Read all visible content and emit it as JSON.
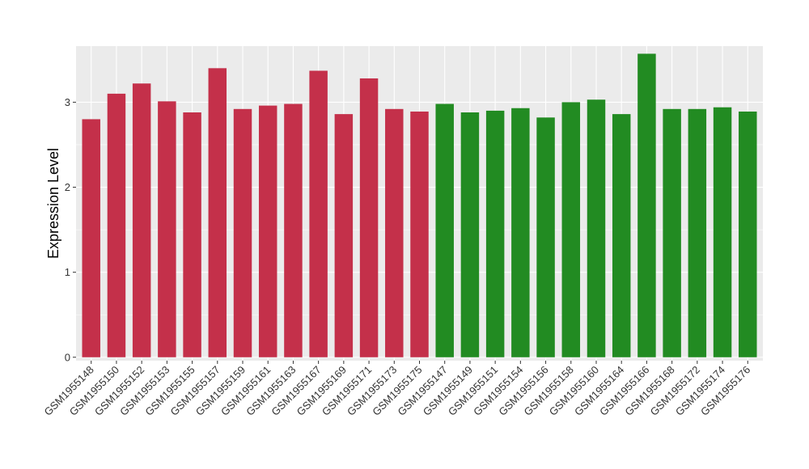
{
  "chart_data": {
    "type": "bar",
    "title": "",
    "xlabel": "",
    "ylabel": "Expression Level",
    "ylim": [
      -0.04,
      3.66
    ],
    "yticks": [
      0,
      1,
      2,
      3
    ],
    "grid": true,
    "legend": "none",
    "categories": [
      "GSM1955148",
      "GSM1955150",
      "GSM1955152",
      "GSM1955153",
      "GSM1955155",
      "GSM1955157",
      "GSM1955159",
      "GSM1955161",
      "GSM1955163",
      "GSM1955167",
      "GSM1955169",
      "GSM1955171",
      "GSM1955173",
      "GSM1955175",
      "GSM1955147",
      "GSM1955149",
      "GSM1955151",
      "GSM1955154",
      "GSM1955156",
      "GSM1955158",
      "GSM1955160",
      "GSM1955164",
      "GSM1955166",
      "GSM1955168",
      "GSM1955172",
      "GSM1955174",
      "GSM1955176"
    ],
    "values": [
      2.8,
      3.1,
      3.22,
      3.01,
      2.88,
      3.4,
      2.92,
      2.96,
      2.98,
      3.37,
      2.86,
      3.28,
      2.92,
      2.89,
      2.98,
      2.88,
      2.9,
      2.93,
      2.82,
      3.0,
      3.03,
      2.86,
      3.57,
      2.92,
      2.92,
      2.94,
      2.89
    ],
    "bar_colors": [
      "#C4304A",
      "#C4304A",
      "#C4304A",
      "#C4304A",
      "#C4304A",
      "#C4304A",
      "#C4304A",
      "#C4304A",
      "#C4304A",
      "#C4304A",
      "#C4304A",
      "#C4304A",
      "#C4304A",
      "#C4304A",
      "#228B22",
      "#228B22",
      "#228B22",
      "#228B22",
      "#228B22",
      "#228B22",
      "#228B22",
      "#228B22",
      "#228B22",
      "#228B22",
      "#228B22",
      "#228B22",
      "#228B22"
    ]
  },
  "colors": {
    "panel_background": "#EBEBEB",
    "grid_line": "#FFFFFF",
    "group_a": "#C4304A",
    "group_b": "#228B22"
  }
}
